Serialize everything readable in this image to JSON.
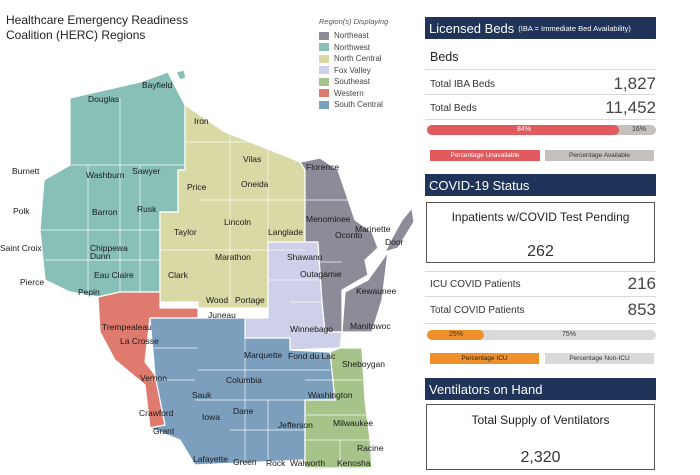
{
  "map": {
    "title": "Healthcare Emergency Readiness Coalition (HERC) Regions",
    "legend_header": "Region(s) Displaying",
    "regions": [
      {
        "name": "Northeast",
        "color": "#8e8b99"
      },
      {
        "name": "Northwest",
        "color": "#88c0b8"
      },
      {
        "name": "North Central",
        "color": "#d8d9a4"
      },
      {
        "name": "Fox Valley",
        "color": "#cdd0e8"
      },
      {
        "name": "Southeast",
        "color": "#a6c48a"
      },
      {
        "name": "Western",
        "color": "#de7a6e"
      },
      {
        "name": "South Central",
        "color": "#7c9fbd"
      }
    ],
    "counties": [
      "Bayfield",
      "Douglas",
      "Iron",
      "Burnett",
      "Washburn",
      "Sawyer",
      "Vilas",
      "Florence",
      "Price",
      "Oneida",
      "Polk",
      "Barron",
      "Rusk",
      "Marinette",
      "Door",
      "Lincoln",
      "Langlade",
      "Taylor",
      "Saint Croix",
      "Chippewa",
      "Menominee",
      "Oconto",
      "Dunn",
      "Eau Claire",
      "Marathon",
      "Shawano",
      "Clark",
      "Kewaunee",
      "Pierce",
      "Pepin",
      "Outagamie",
      "Wood",
      "Portage",
      "Manitowoc",
      "Trempealeau",
      "Winnebago",
      "La Crosse",
      "Juneau",
      "Marquette",
      "Fond du Lac",
      "Sheboygan",
      "Vernon",
      "Columbia",
      "Sauk",
      "Washington",
      "Crawford",
      "Dane",
      "Iowa",
      "Milwaukee",
      "Jefferson",
      "Grant",
      "Racine",
      "Lafayette",
      "Green",
      "Rock",
      "Walworth",
      "Kenosha"
    ]
  },
  "beds": {
    "header": "Licensed Beds",
    "header_note": "(IBA = Immediate Bed Availability)",
    "subtitle": "Beds",
    "total_iba_label": "Total IBA Beds",
    "total_iba_value": "1,827",
    "total_beds_label": "Total Beds",
    "total_beds_value": "11,452",
    "unavailable_pct": 84,
    "unavailable_label": "84%",
    "available_label": "16%",
    "legend_unavailable": "Percentage Unavailable",
    "legend_available": "Percentage Available",
    "color_unavailable": "#e05a5e",
    "color_available": "#c6c0bc"
  },
  "covid": {
    "header": "COVID-19 Status",
    "pending_title": "Inpatients w/COVID Test Pending",
    "pending_value": "262",
    "icu_label": "ICU COVID Patients",
    "icu_value": "216",
    "total_label": "Total COVID Patients",
    "total_value": "853",
    "icu_pct": 25,
    "icu_pct_label": "25%",
    "nonicu_pct_label": "75%",
    "legend_icu": "Percentage ICU",
    "legend_nonicu": "Percentage Non-ICU",
    "color_icu": "#f0902a",
    "color_nonicu": "#d9d9d9"
  },
  "vent": {
    "header": "Ventilators on Hand",
    "title": "Total Supply of Ventilators",
    "value": "2,320"
  }
}
